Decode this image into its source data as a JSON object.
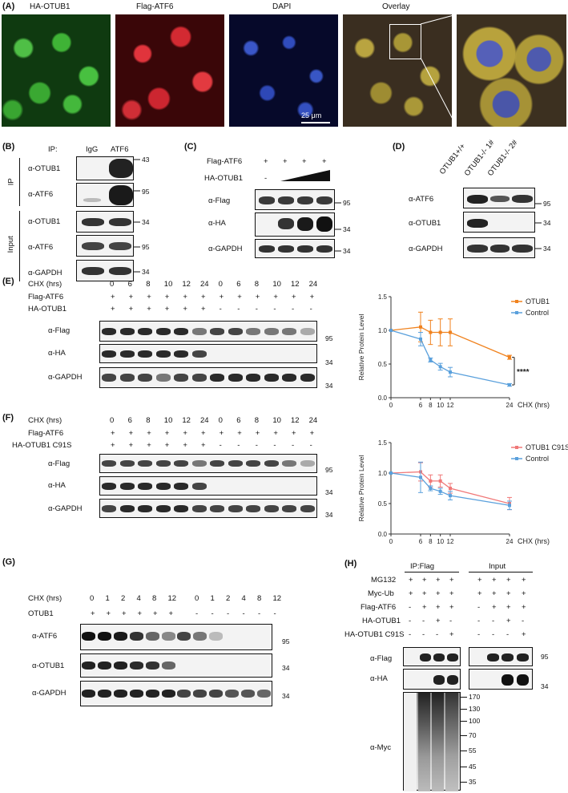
{
  "panelA": {
    "label": "(A)",
    "titles": [
      "HA-OTUB1",
      "Flag-ATF6",
      "DAPI",
      "Overlay"
    ],
    "scale": "25 μm"
  },
  "panelB": {
    "label": "(B)",
    "ip": "IP:",
    "igg": "IgG",
    "atf6": "ATF6",
    "section_ip": "IP",
    "section_input": "Input",
    "rows": [
      "α-OTUB1",
      "α-ATF6",
      "α-OTUB1",
      "α-ATF6",
      "α-GAPDH"
    ],
    "markers": [
      "43",
      "95",
      "34",
      "95",
      "34"
    ]
  },
  "panelC": {
    "label": "(C)",
    "row1": "Flag-ATF6",
    "row2": "HA-OTUB1",
    "plus": "+",
    "minus": "-",
    "rows": [
      "α-Flag",
      "α-HA",
      "α-GAPDH"
    ],
    "markers": [
      "95",
      "34",
      "34"
    ]
  },
  "panelD": {
    "label": "(D)",
    "cols": [
      "OTUB1+/+",
      "OTUB1-/- 1#",
      "OTUB1-/- 2#"
    ],
    "rows": [
      "α-ATF6",
      "α-OTUB1",
      "α-GAPDH"
    ],
    "markers": [
      "95",
      "34",
      "34"
    ]
  },
  "panelE": {
    "label": "(E)",
    "hdr1": "CHX (hrs)",
    "hdr2": "Flag-ATF6",
    "hdr3": "HA-OTUB1",
    "times": [
      "0",
      "6",
      "8",
      "10",
      "12",
      "24",
      "0",
      "6",
      "8",
      "10",
      "12",
      "24"
    ],
    "rows": [
      "α-Flag",
      "α-HA",
      "α-GAPDH"
    ],
    "markers": [
      "95",
      "34",
      "34"
    ]
  },
  "panelF": {
    "label": "(F)",
    "hdr1": "CHX (hrs)",
    "hdr2": "Flag-ATF6",
    "hdr3": "HA-OTUB1 C91S",
    "times": [
      "0",
      "6",
      "8",
      "10",
      "12",
      "24",
      "0",
      "6",
      "8",
      "10",
      "12",
      "24"
    ],
    "rows": [
      "α-Flag",
      "α-HA",
      "α-GAPDH"
    ],
    "markers": [
      "95",
      "34",
      "34"
    ]
  },
  "panelG": {
    "label": "(G)",
    "hdr1": "CHX (hrs)",
    "hdr2": "OTUB1",
    "times": [
      "0",
      "1",
      "2",
      "4",
      "8",
      "12",
      "0",
      "1",
      "2",
      "4",
      "8",
      "12"
    ],
    "rows": [
      "α-ATF6",
      "α-OTUB1",
      "α-GAPDH"
    ],
    "markers": [
      "95",
      "34",
      "34"
    ]
  },
  "panelH": {
    "label": "(H)",
    "ipflag": "IP:Flag",
    "input": "Input",
    "conds": [
      "MG132",
      "Myc-Ub",
      "Flag-ATF6",
      "HA-OTUB1",
      "HA-OTUB1 C91S"
    ],
    "rows": [
      "α-Flag",
      "α-HA",
      "α-Myc"
    ],
    "markers_top": [
      "95",
      "34"
    ],
    "myc_markers": [
      "170",
      "130",
      "100",
      "70",
      "55",
      "45",
      "35"
    ]
  },
  "chart_data": [
    {
      "type": "line",
      "xlabel": "CHX (hrs)",
      "ylabel": "Relative Protein Level",
      "x": [
        0,
        6,
        8,
        10,
        12,
        24
      ],
      "xticks": [
        "0",
        "6",
        "8",
        "10",
        "12",
        "24"
      ],
      "ylim": [
        0,
        1.5
      ],
      "yticks": [
        "0.0",
        "0.5",
        "1.0",
        "1.5"
      ],
      "legend": "top-right",
      "annotation": "****",
      "series": [
        {
          "name": "OTUB1",
          "color": "#f0821e",
          "values": [
            1.0,
            1.05,
            0.97,
            0.97,
            0.97,
            0.6
          ],
          "err": [
            0,
            0.22,
            0.18,
            0.2,
            0.2,
            0.03
          ]
        },
        {
          "name": "Control",
          "color": "#5aa0dc",
          "values": [
            1.0,
            0.87,
            0.56,
            0.46,
            0.38,
            0.19
          ],
          "err": [
            0,
            0.1,
            0.03,
            0.05,
            0.07,
            0.02
          ]
        }
      ]
    },
    {
      "type": "line",
      "xlabel": "CHX (hrs)",
      "ylabel": "Relative Protein Level",
      "x": [
        0,
        6,
        8,
        10,
        12,
        24
      ],
      "xticks": [
        "0",
        "6",
        "8",
        "10",
        "12",
        "24"
      ],
      "ylim": [
        0,
        1.5
      ],
      "yticks": [
        "0.0",
        "0.5",
        "1.0",
        "1.5"
      ],
      "legend": "top-right",
      "series": [
        {
          "name": "OTUB1 C91S",
          "color": "#f07878",
          "values": [
            1.0,
            1.02,
            0.87,
            0.87,
            0.75,
            0.5
          ],
          "err": [
            0,
            0.15,
            0.1,
            0.1,
            0.08,
            0.1
          ]
        },
        {
          "name": "Control",
          "color": "#5aa0dc",
          "values": [
            1.0,
            0.93,
            0.75,
            0.7,
            0.63,
            0.47
          ],
          "err": [
            0,
            0.25,
            0.04,
            0.05,
            0.07,
            0.07
          ]
        }
      ]
    }
  ]
}
